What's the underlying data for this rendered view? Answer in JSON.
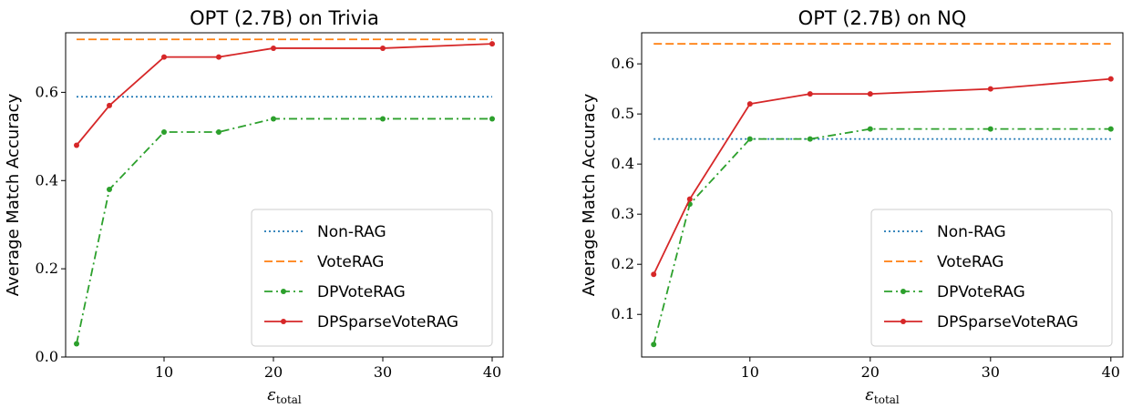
{
  "chart_data": [
    {
      "type": "line",
      "title": "OPT (2.7B) on Trivia",
      "xlabel": "ε",
      "xlabel_sub": "total",
      "ylabel": "Average Match Accuracy",
      "xlim": [
        1,
        41
      ],
      "ylim": [
        0,
        0.735
      ],
      "xticks": [
        10,
        20,
        30,
        40
      ],
      "yticks": [
        0.0,
        0.2,
        0.4,
        0.6
      ],
      "ytick_labels": [
        "0.0",
        "0.2",
        "0.4",
        "0.6"
      ],
      "grid": false,
      "legend_position": "bottom-right",
      "series": [
        {
          "name": "Non-RAG",
          "color": "#1f77b4",
          "style": "dotted",
          "markers": false,
          "x": [
            2,
            40
          ],
          "y": [
            0.59,
            0.59
          ]
        },
        {
          "name": "VoteRAG",
          "color": "#ff7f0e",
          "style": "dashed",
          "markers": false,
          "x": [
            2,
            40
          ],
          "y": [
            0.72,
            0.72
          ]
        },
        {
          "name": "DPVoteRAG",
          "color": "#2ca02c",
          "style": "dashdot",
          "markers": true,
          "x": [
            2,
            5,
            10,
            15,
            20,
            30,
            40
          ],
          "y": [
            0.03,
            0.38,
            0.51,
            0.51,
            0.54,
            0.54,
            0.54
          ]
        },
        {
          "name": "DPSparseVoteRAG",
          "color": "#d62728",
          "style": "solid",
          "markers": true,
          "x": [
            2,
            5,
            10,
            15,
            20,
            30,
            40
          ],
          "y": [
            0.48,
            0.57,
            0.68,
            0.68,
            0.7,
            0.7,
            0.71
          ]
        }
      ]
    },
    {
      "type": "line",
      "title": "OPT (2.7B) on NQ",
      "xlabel": "ε",
      "xlabel_sub": "total",
      "ylabel": "Average Match Accuracy",
      "xlim": [
        1,
        41
      ],
      "ylim": [
        0.015,
        0.662
      ],
      "xticks": [
        10,
        20,
        30,
        40
      ],
      "yticks": [
        0.1,
        0.2,
        0.3,
        0.4,
        0.5,
        0.6
      ],
      "ytick_labels": [
        "0.1",
        "0.2",
        "0.3",
        "0.4",
        "0.5",
        "0.6"
      ],
      "grid": false,
      "legend_position": "bottom-right",
      "series": [
        {
          "name": "Non-RAG",
          "color": "#1f77b4",
          "style": "dotted",
          "markers": false,
          "x": [
            2,
            40
          ],
          "y": [
            0.45,
            0.45
          ]
        },
        {
          "name": "VoteRAG",
          "color": "#ff7f0e",
          "style": "dashed",
          "markers": false,
          "x": [
            2,
            40
          ],
          "y": [
            0.64,
            0.64
          ]
        },
        {
          "name": "DPVoteRAG",
          "color": "#2ca02c",
          "style": "dashdot",
          "markers": true,
          "x": [
            2,
            5,
            10,
            15,
            20,
            30,
            40
          ],
          "y": [
            0.04,
            0.32,
            0.45,
            0.45,
            0.47,
            0.47,
            0.47
          ]
        },
        {
          "name": "DPSparseVoteRAG",
          "color": "#d62728",
          "style": "solid",
          "markers": true,
          "x": [
            2,
            5,
            10,
            15,
            20,
            30,
            40
          ],
          "y": [
            0.18,
            0.33,
            0.52,
            0.54,
            0.54,
            0.55,
            0.57
          ]
        }
      ]
    }
  ]
}
